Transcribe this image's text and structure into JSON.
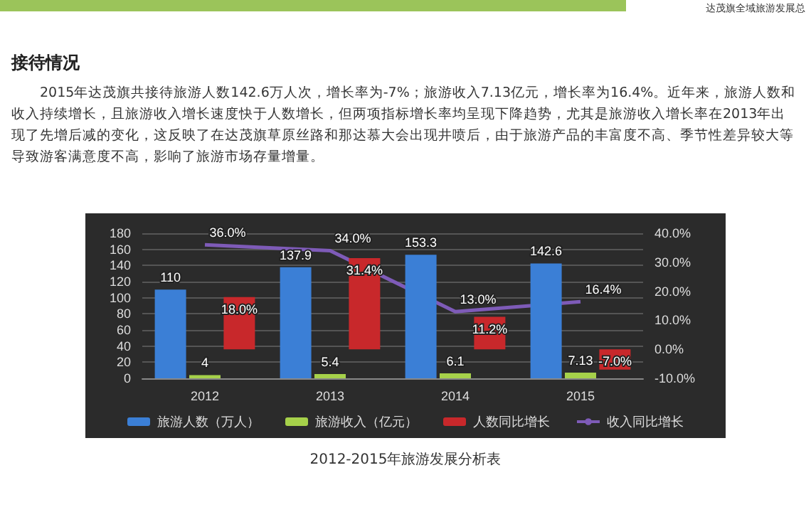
{
  "chart_data": {
    "type": "bar",
    "title": "接待情况",
    "annotations": [
      "达茂旗全域旅游发展总",
      "2015年达茂旗共接待旅游人数142.6万人次，增长率为-7%；旅游收入7.13亿元，增长率为16.4%。近年来，旅游人数和收入持续增长，且旅游收入增长速度快于人数增长，但两项指标增长率均呈现下降趋势，尤其是旅游收入增长率在2013年出现了先增后减的变化，这反映了在达茂旗草原丝路和那达慕大会出现井喷后，由于旅游产品的丰富度不高、季节性差异较大等导致游客满意度不高，影响了旅游市场存量增量。",
      "2012-2015年旅游发展分析表"
    ],
    "categories": [
      "2012",
      "2013",
      "2014",
      "2015"
    ],
    "series": [
      {
        "name": "旅游人数（万人）",
        "color": "#3b7fd6",
        "values": [
          110,
          137.9,
          153.3,
          142.6
        ],
        "value_labels": [
          "110",
          "137.9",
          "153.3",
          "142.6"
        ]
      },
      {
        "name": "旅游收入（亿元）",
        "color": "#a6d14a",
        "values": [
          4,
          5.4,
          6.1,
          7.13
        ],
        "value_labels": [
          "4",
          "5.4",
          "6.1",
          "7.13"
        ]
      },
      {
        "name": "人数同比增长",
        "axis": "y2",
        "color": "#c8282b",
        "values": [
          18.0,
          31.4,
          11.2,
          -7.0
        ],
        "value_labels": [
          "18.0%",
          "31.4%",
          "11.2%",
          "-7.0%"
        ]
      },
      {
        "name": "收入同比增长",
        "type": "line",
        "axis": "y2",
        "color": "#7e5bb8",
        "values": [
          36.0,
          34.0,
          13.0,
          16.4
        ],
        "value_labels": [
          "36.0%",
          "34.0%",
          "13.0%",
          "16.4%"
        ]
      }
    ],
    "ylim": [
      0,
      180
    ],
    "yticks": [
      0,
      20,
      40,
      60,
      80,
      100,
      120,
      140,
      160,
      180
    ],
    "y2lim": [
      -10,
      40
    ],
    "y2ticks": [
      {
        "value": -10,
        "label": "-10.0%"
      },
      {
        "value": 0,
        "label": "0.0%"
      },
      {
        "value": 10,
        "label": "10.0%"
      },
      {
        "value": 20,
        "label": "20.0%"
      },
      {
        "value": 30,
        "label": "30.0%"
      },
      {
        "value": 40,
        "label": "40.0%"
      }
    ],
    "grid": "y",
    "legend": "bottom",
    "marker": "none",
    "line_style": "solid"
  }
}
